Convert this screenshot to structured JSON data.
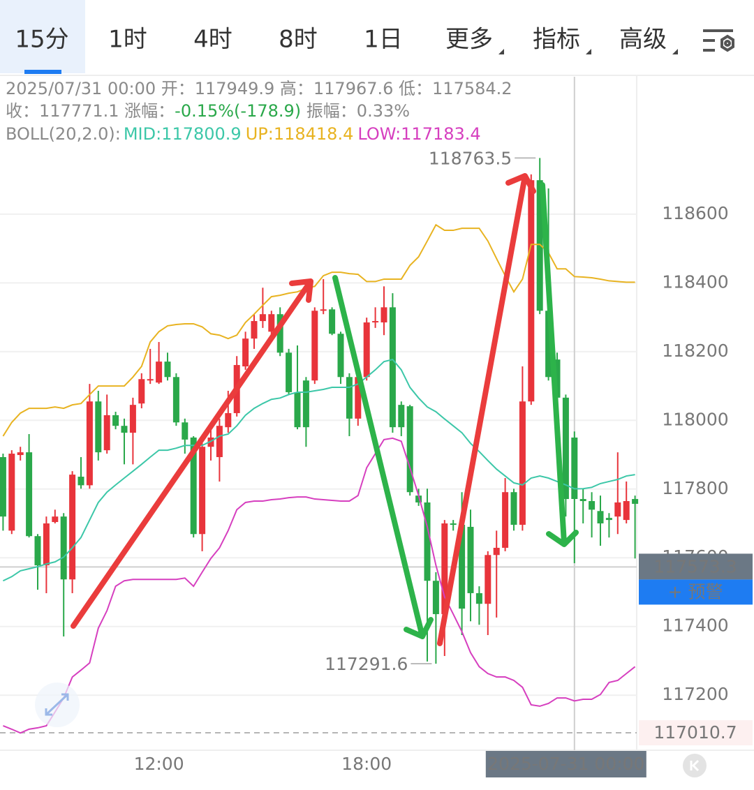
{
  "tabs": [
    "15分",
    "1时",
    "4时",
    "8时",
    "1日",
    "更多",
    "指标",
    "高级"
  ],
  "chart_data": {
    "type": "candlestick",
    "info": {
      "line1": "2025/07/31 00:00 开：117949.9 高：117967.6 低：117584.2",
      "close": "收：117771.1",
      "change_label": "涨幅：",
      "change": "-0.15%(-178.9)",
      "amplitude": "振幅：0.33%",
      "boll": "BOLL(20,2.0):"
    },
    "categories": [
      null,
      null,
      null,
      null,
      null,
      null,
      null,
      null,
      null,
      null,
      null,
      null,
      null,
      null,
      null,
      null,
      null,
      null,
      "12:00",
      null,
      null,
      null,
      null,
      null,
      null,
      null,
      null,
      null,
      null,
      null,
      null,
      null,
      null,
      null,
      null,
      null,
      null,
      null,
      null,
      null,
      null,
      null,
      "18:00",
      null,
      null,
      null,
      null,
      null,
      null,
      null,
      null,
      null,
      null,
      null,
      null,
      null,
      null,
      null,
      null,
      null,
      null,
      null,
      null,
      null,
      null,
      null,
      "2025-07-31 00:00",
      null,
      null,
      null,
      null,
      null,
      null,
      null
    ],
    "highlight_index": 66,
    "candles": {
      "up_color": "#e8343b",
      "down_color": "#2aa84a",
      "open": [
        117893,
        117679,
        117899,
        117907,
        117663,
        117578,
        117704,
        117720,
        117537,
        117836,
        117811,
        118055,
        117913,
        118015,
        117984,
        117964,
        118049,
        118116,
        118110,
        118171,
        118126,
        117994,
        117950,
        117669,
        117923,
        117893,
        117980,
        118021,
        118157,
        118238,
        118289,
        118258,
        118309,
        118197,
        118082,
        118116,
        118116,
        118319,
        118323,
        118252,
        118126,
        118005,
        118126,
        118285,
        118285,
        118329,
        118045,
        118041,
        117781,
        117761,
        117533,
        117436,
        117700,
        117696,
        117690,
        117497,
        117466,
        117608,
        117629,
        117791,
        117696,
        118055,
        118699,
        118319,
        118177,
        118066,
        117949.9,
        117771,
        117765,
        117736,
        117716,
        117720,
        117710,
        117771
      ],
      "high": [
        117903,
        117913,
        117923,
        117960,
        117669,
        117720,
        117740,
        117730,
        117852,
        117893,
        118106,
        118086,
        118075,
        118025,
        118005,
        118066,
        118137,
        118208,
        118228,
        118197,
        118137,
        118005,
        117954,
        117933,
        117974,
        118005,
        118086,
        118187,
        118258,
        118309,
        118386,
        118319,
        118329,
        118208,
        118218,
        118126,
        118329,
        118411,
        118329,
        118258,
        118137,
        118137,
        118299,
        118329,
        118390,
        118370,
        118055,
        118045,
        117801,
        117801,
        117558,
        117710,
        117710,
        117791,
        117740,
        117517,
        117619,
        117679,
        117832,
        117801,
        118157,
        118716,
        118763.5,
        118675,
        118197,
        118075,
        117967.6,
        117801,
        117791,
        117781,
        117730,
        117907,
        117822,
        117781
      ],
      "low": [
        117679,
        117669,
        117883,
        117659,
        117507,
        117497,
        117700,
        117371,
        117497,
        117801,
        117801,
        117883,
        117903,
        117974,
        117872,
        117872,
        118035,
        118106,
        118106,
        118116,
        117984,
        117903,
        117659,
        117619,
        117883,
        117822,
        117964,
        118011,
        118147,
        118208,
        118269,
        118238,
        118187,
        118075,
        117974,
        117923,
        118106,
        118309,
        118248,
        118106,
        117954,
        117984,
        118116,
        118269,
        118248,
        117964,
        117954,
        117781,
        117751,
        117298,
        117291.6,
        117314,
        117679,
        117375,
        117415,
        117405,
        117375,
        117426,
        117619,
        117679,
        117679,
        118045,
        118309,
        118116,
        118045,
        117720,
        117584.2,
        117700,
        117659,
        117635,
        117659,
        117669,
        117700,
        117598
      ],
      "close": [
        117720,
        117903,
        117907,
        117663,
        117578,
        117700,
        117720,
        117537,
        117842,
        117811,
        118055,
        117907,
        118015,
        117984,
        117964,
        118045,
        118120,
        118120,
        118171,
        118126,
        117994,
        117944,
        117669,
        117923,
        117950,
        117984,
        118021,
        118161,
        118238,
        118289,
        118309,
        118309,
        118197,
        118082,
        117980,
        117980,
        118319,
        118323,
        118252,
        118126,
        118005,
        118126,
        118285,
        118289,
        118329,
        117980,
        117980,
        117791,
        117761,
        117533,
        117436,
        117700,
        117696,
        117452,
        117497,
        117466,
        117608,
        117629,
        117791,
        117696,
        118055,
        118699,
        118319,
        118126,
        118066,
        117771,
        117771.1,
        117765,
        117740,
        117700,
        117710,
        117761,
        117765,
        117757
      ]
    },
    "lines": [
      {
        "label": "MID:117800.9",
        "color": "#3cc7a8",
        "values": [
          117533,
          117545,
          117562,
          117568,
          117574,
          117582,
          117588,
          117602,
          117629,
          117659,
          117710,
          117761,
          117791,
          117812,
          117832,
          117852,
          117872,
          117893,
          117913,
          117913,
          117919,
          117927,
          117927,
          117927,
          117939,
          117954,
          117960,
          117984,
          118015,
          118035,
          118049,
          118061,
          118065,
          118075,
          118082,
          118082,
          118086,
          118090,
          118096,
          118096,
          118096,
          118106,
          118126,
          118147,
          118171,
          118177,
          118147,
          118096,
          118065,
          118039,
          118025,
          118004,
          117984,
          117964,
          117933,
          117909,
          117883,
          117858,
          117838,
          117818,
          117812,
          117832,
          117838,
          117832,
          117822,
          117812,
          117800.9,
          117801,
          117805,
          117816,
          117822,
          117828,
          117838,
          117842
        ]
      },
      {
        "label": "UP:118418.4",
        "color": "#e8b321",
        "values": [
          117954,
          117994,
          118021,
          118035,
          118035,
          118035,
          118039,
          118035,
          118045,
          118049,
          118075,
          118100,
          118100,
          118100,
          118100,
          118126,
          118157,
          118228,
          118258,
          118275,
          118279,
          118281,
          118281,
          118272,
          118252,
          118248,
          118238,
          118248,
          118285,
          118309,
          118335,
          118360,
          118364,
          118370,
          118374,
          118384,
          118390,
          118421,
          118431,
          118431,
          118427,
          118425,
          118404,
          118404,
          118411,
          118411,
          118411,
          118451,
          118476,
          118522,
          118569,
          118553,
          118553,
          118559,
          118559,
          118559,
          118522,
          118471,
          118421,
          118374,
          118411,
          118512,
          118512,
          118488,
          118441,
          118441,
          118418.4,
          118417,
          118415,
          118411,
          118406,
          118404,
          118402,
          118402
        ]
      },
      {
        "label": "LOW:117183.4",
        "color": "#d63fbf",
        "values": [
          117111,
          117101,
          117090,
          117101,
          117105,
          117111,
          117151,
          117192,
          117253,
          117273,
          117294,
          117395,
          117446,
          117517,
          117533,
          117537,
          117537,
          117537,
          117537,
          117537,
          117537,
          117541,
          117517,
          117558,
          117598,
          117629,
          117679,
          117740,
          117761,
          117765,
          117765,
          117769,
          117771,
          117775,
          117777,
          117777,
          117771,
          117769,
          117767,
          117765,
          117765,
          117781,
          117862,
          117903,
          117944,
          117948,
          117939,
          117862,
          117781,
          117690,
          117578,
          117486,
          117436,
          117385,
          117324,
          117283,
          117263,
          117253,
          117253,
          117243,
          117223,
          117172,
          117168,
          117176,
          117192,
          117192,
          117183.4,
          117188,
          117188,
          117202,
          117237,
          117243,
          117263,
          117283
        ]
      }
    ],
    "ylim": [
      117050,
      119000
    ],
    "yticks": [
      117200,
      117400,
      117600,
      117800,
      118000,
      118200,
      118400,
      118600
    ],
    "grid": true,
    "last_price": 117573.3,
    "alert": "+ 预警",
    "bottom_price": 117010.7
  }
}
